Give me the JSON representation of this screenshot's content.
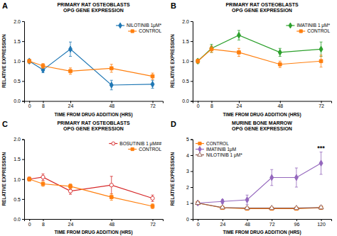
{
  "chart_data": [
    {
      "type": "line",
      "title": "PRIMARY RAT OSTEOBLASTS\nOPG GENE EXPRESSION",
      "x_label": "TIME FROM DRUG ADDITION (HRS)",
      "y_label": "RELATIVE EXPRESSION",
      "annotations": [
        {
          "text": "A"
        }
      ],
      "x": [
        0,
        8,
        24,
        48,
        72
      ],
      "series": [
        {
          "name": "NILOTINIB 1μM*",
          "values": [
            1.0,
            0.78,
            1.3,
            0.4,
            0.42
          ],
          "errors": [
            0.05,
            0.07,
            0.18,
            0.12,
            0.1
          ],
          "marker": "diamond"
        },
        {
          "name": "CONTROL",
          "values": [
            1.0,
            0.88,
            0.75,
            0.82,
            0.62
          ],
          "errors": [
            0.05,
            0.06,
            0.08,
            0.1,
            0.08
          ],
          "marker": "square"
        }
      ],
      "xlim": [
        -3,
        78
      ],
      "xticks": [
        0,
        8,
        24,
        48,
        72
      ],
      "ylim": [
        0.0,
        2.0
      ],
      "yticks": [
        {
          "value": 0.0,
          "label": "0.0"
        },
        0.5,
        {
          "value": 1.0,
          "label": "1.0"
        },
        1.5,
        {
          "value": 2.0,
          "label": "2.0"
        }
      ],
      "grid": false,
      "legend": "upper right"
    },
    {
      "type": "line",
      "title": "PRIMARY RAT OSTEOBLASTS\nOPG GENE EXPRESSION",
      "x_label": "TIME FROM DRUG ADDITION (HRS)",
      "y_label": "RELATIVE EXPRESSION",
      "annotations": [
        {
          "text": "B"
        }
      ],
      "x": [
        0,
        8,
        24,
        48,
        72
      ],
      "series": [
        {
          "name": "IMATINIB 1 μM*",
          "values": [
            1.0,
            1.32,
            1.65,
            1.22,
            1.3
          ],
          "errors": [
            0.05,
            0.1,
            0.12,
            0.1,
            0.18
          ],
          "marker": "diamond"
        },
        {
          "name": "CONTROL",
          "values": [
            1.0,
            1.3,
            1.22,
            0.92,
            1.0
          ],
          "errors": [
            0.05,
            0.08,
            0.1,
            0.08,
            0.15
          ],
          "marker": "square"
        }
      ],
      "xlim": [
        -3,
        78
      ],
      "xticks": [
        0,
        8,
        24,
        48,
        72
      ],
      "ylim": [
        0.0,
        2.0
      ],
      "yticks": [
        {
          "value": 0.0,
          "label": "0.0"
        },
        0.5,
        {
          "value": 1.0,
          "label": "1.0"
        },
        1.5,
        {
          "value": 2.0,
          "label": "2.0"
        }
      ],
      "grid": false,
      "legend": "upper right"
    },
    {
      "type": "line",
      "title": "PRIMARY RAT OSTEOBLASTS\nOPG GENE EXPRESSION",
      "x_label": "TIME FROM DRUG ADDITION (HRS)",
      "y_label": "RELATIVE EXPRESSION",
      "annotations": [
        {
          "text": "C"
        }
      ],
      "x": [
        0,
        8,
        24,
        48,
        72
      ],
      "series": [
        {
          "name": "BOSUTINIB 1 μM##",
          "values": [
            1.0,
            1.05,
            0.7,
            0.85,
            0.52
          ],
          "errors": [
            0.05,
            0.08,
            0.08,
            0.22,
            0.08
          ],
          "marker": "circle-open"
        },
        {
          "name": "CONTROL",
          "values": [
            1.0,
            0.88,
            0.82,
            0.55,
            0.32
          ],
          "errors": [
            0.05,
            0.06,
            0.06,
            0.08,
            0.06
          ],
          "marker": "square"
        }
      ],
      "xlim": [
        -3,
        78
      ],
      "xticks": [
        0,
        8,
        24,
        48,
        72
      ],
      "ylim": [
        0.0,
        2.0
      ],
      "yticks": [
        {
          "value": 0.0,
          "label": "0.0"
        },
        0.5,
        {
          "value": 1.0,
          "label": "1.0"
        },
        1.5,
        {
          "value": 2.0,
          "label": "2.0"
        }
      ],
      "grid": false,
      "legend": "upper right"
    },
    {
      "type": "line",
      "title": "MURINE BONE MARROW\nOPG GENE EXPRESSION",
      "x_label": "TIME FROM DRUG ADDITION (HRS)",
      "y_label": "RELATIVE EXPRESSION",
      "annotations": [
        {
          "text": "***",
          "x": 120,
          "y": 4.3
        },
        {
          "text": "D"
        }
      ],
      "x": [
        0,
        24,
        48,
        72,
        96,
        120
      ],
      "series": [
        {
          "name": "CONTROL",
          "values": [
            1.0,
            0.7,
            0.65,
            0.65,
            0.65,
            0.7
          ],
          "errors": [
            0.05,
            0.06,
            0.06,
            0.06,
            0.06,
            0.1
          ],
          "marker": "square"
        },
        {
          "name": "IMATINIB 1μM",
          "values": [
            1.0,
            1.1,
            1.2,
            2.6,
            2.6,
            3.5
          ],
          "errors": [
            0.05,
            0.12,
            0.3,
            0.5,
            0.6,
            0.7
          ],
          "marker": "diamond"
        },
        {
          "name": "NILOTINIB 1 μM*",
          "values": [
            1.0,
            0.72,
            0.68,
            0.68,
            0.68,
            0.72
          ],
          "errors": [
            0.05,
            0.06,
            0.06,
            0.06,
            0.06,
            0.1
          ],
          "marker": "triangle-open"
        }
      ],
      "xlim": [
        -5,
        130
      ],
      "xticks": [
        0,
        24,
        48,
        72,
        96,
        120
      ],
      "ylim": [
        0.0,
        5.0
      ],
      "yticks": [
        0,
        1,
        2,
        3,
        4,
        5
      ],
      "grid": false,
      "legend": "upper left"
    }
  ]
}
